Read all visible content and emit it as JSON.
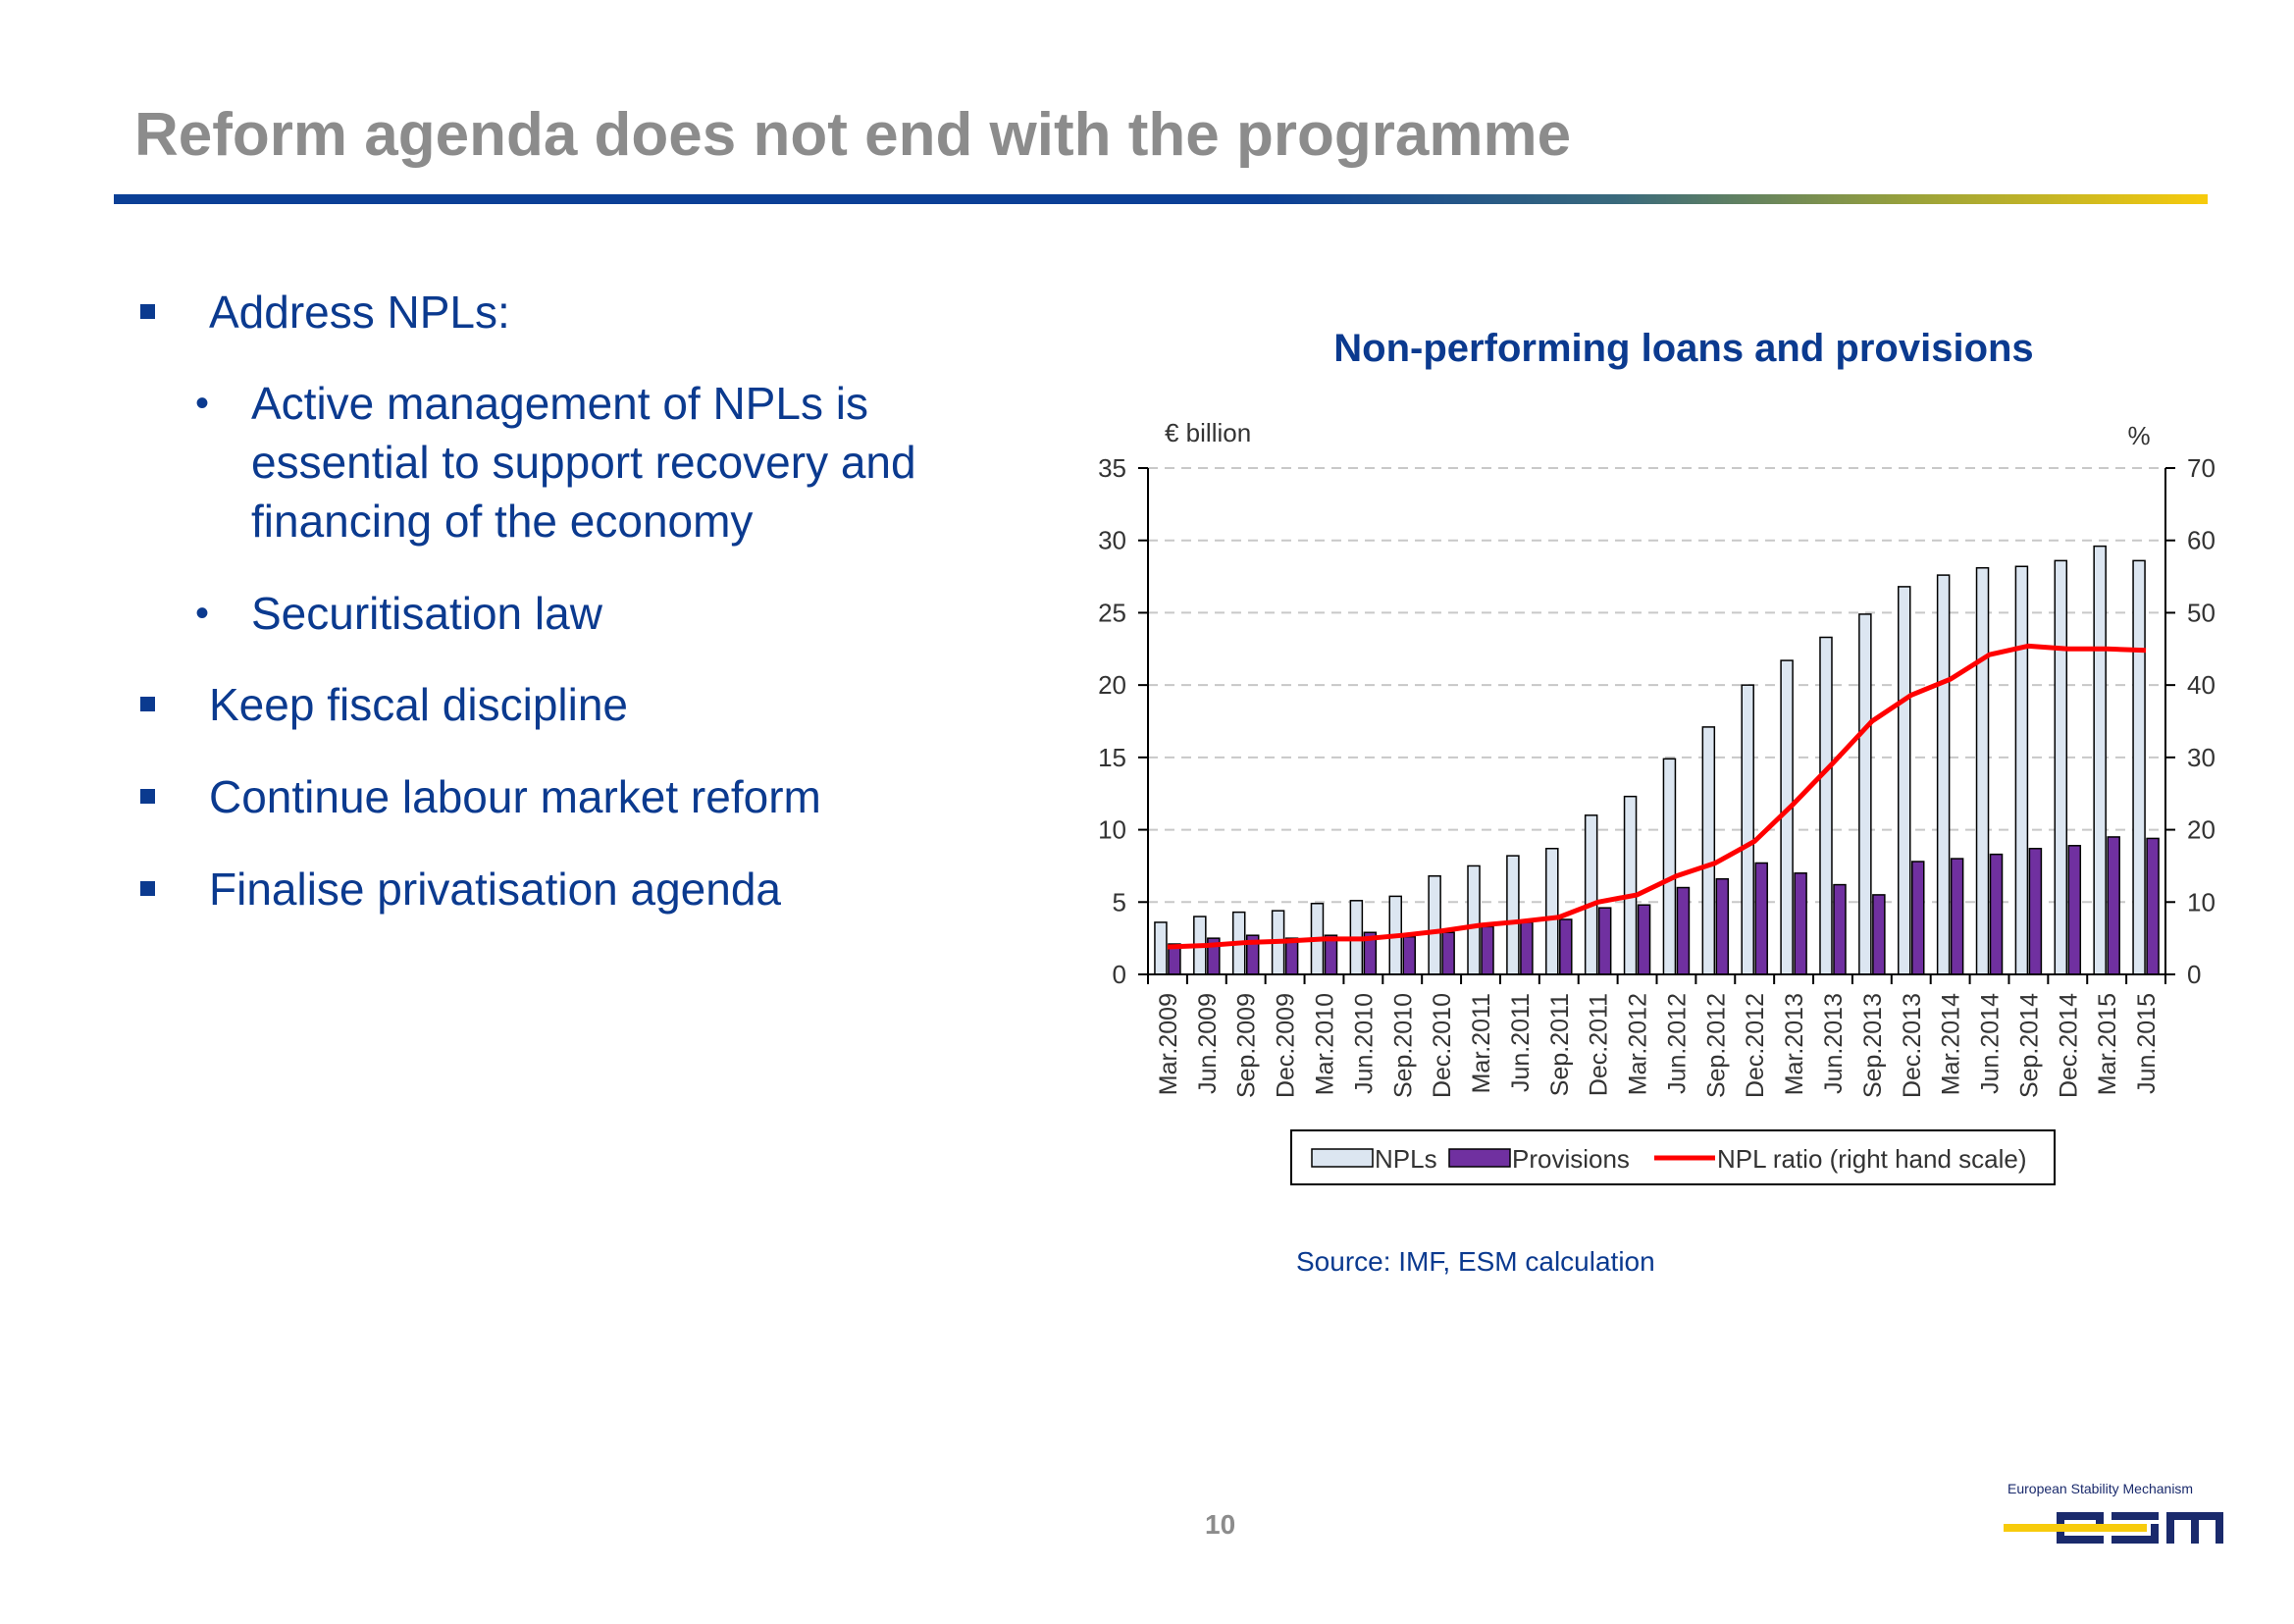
{
  "slide": {
    "title": "Reform agenda does not end with the programme",
    "page_number": "10"
  },
  "bullets": {
    "address_npls": "Address NPLs:",
    "sub1": "Active management of NPLs is essential to support recovery and financing of the economy",
    "sub2": "Securitisation law",
    "fiscal": "Keep fiscal discipline",
    "labour": "Continue labour market reform",
    "privatisation": "Finalise privatisation agenda"
  },
  "source": "Source: IMF, ESM calculation",
  "logo": {
    "caption": "European Stability Mechanism",
    "wordmark": "esm"
  },
  "colors": {
    "title_gray": "#8c8c8c",
    "text_blue": "#0b3a8f",
    "npl_fill": "#dce6f1",
    "provisions_fill": "#7030a0",
    "ratio_line": "#ff0000",
    "logo_yellow": "#f7cb0c"
  },
  "chart_data": {
    "type": "bar",
    "title": "Non-performing loans and provisions",
    "ylabel_left": "€ billion",
    "ylabel_right": "%",
    "ylim_left": [
      0,
      35
    ],
    "ylim_right": [
      0,
      70
    ],
    "yticks_left": [
      0,
      5,
      10,
      15,
      20,
      25,
      30,
      35
    ],
    "yticks_right": [
      0,
      10,
      20,
      30,
      40,
      50,
      60,
      70
    ],
    "grid": true,
    "legend_position": "bottom",
    "categories": [
      "Mar.2009",
      "Jun.2009",
      "Sep.2009",
      "Dec.2009",
      "Mar.2010",
      "Jun.2010",
      "Sep.2010",
      "Dec.2010",
      "Mar.2011",
      "Jun.2011",
      "Sep.2011",
      "Dec.2011",
      "Mar.2012",
      "Jun.2012",
      "Sep.2012",
      "Dec.2012",
      "Mar.2013",
      "Jun.2013",
      "Sep.2013",
      "Dec.2013",
      "Mar.2014",
      "Jun.2014",
      "Sep.2014",
      "Dec.2014",
      "Mar.2015",
      "Jun.2015"
    ],
    "series": [
      {
        "name": "NPLs",
        "type": "bar",
        "axis": "left",
        "values": [
          3.6,
          4.0,
          4.3,
          4.4,
          4.9,
          5.1,
          5.4,
          6.8,
          7.5,
          8.2,
          8.7,
          11.0,
          12.3,
          14.9,
          17.1,
          20.0,
          21.7,
          23.3,
          24.9,
          26.8,
          27.6,
          28.1,
          28.2,
          28.6,
          29.6,
          28.6
        ]
      },
      {
        "name": "Provisions",
        "type": "bar",
        "axis": "left",
        "values": [
          2.1,
          2.5,
          2.7,
          2.5,
          2.7,
          2.9,
          2.6,
          2.9,
          3.3,
          3.6,
          3.8,
          4.6,
          4.8,
          6.0,
          6.6,
          7.7,
          7.0,
          6.2,
          5.5,
          7.8,
          8.0,
          8.3,
          8.7,
          8.9,
          9.5,
          9.4
        ]
      },
      {
        "name": "NPL ratio (right hand scale)",
        "type": "line",
        "axis": "right",
        "values": [
          3.8,
          4.0,
          4.4,
          4.6,
          4.9,
          4.9,
          5.4,
          6.0,
          6.8,
          7.3,
          7.9,
          10.0,
          11.0,
          13.6,
          15.4,
          18.4,
          23.6,
          29.2,
          35.0,
          38.6,
          40.8,
          44.2,
          45.4,
          45.0,
          45.0,
          44.8
        ]
      }
    ]
  }
}
